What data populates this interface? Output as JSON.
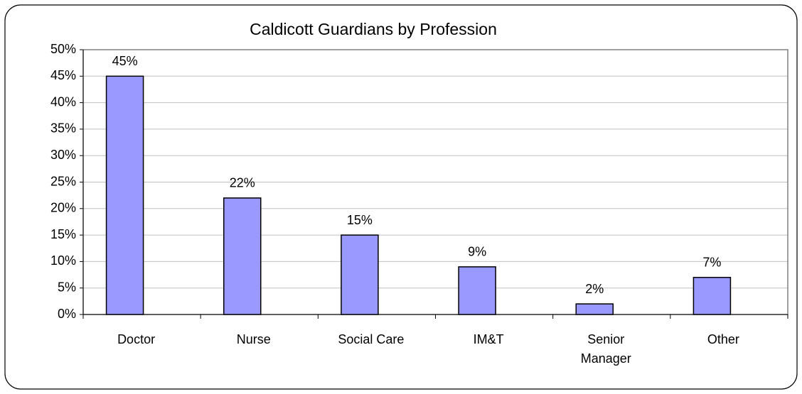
{
  "chart_data": {
    "type": "bar",
    "title": "Caldicott Guardians by Profession",
    "categories": [
      "Doctor",
      "Nurse",
      "Social Care",
      "IM&T",
      "Senior Manager",
      "Other"
    ],
    "values": [
      45,
      22,
      15,
      9,
      2,
      7
    ],
    "value_labels": [
      "45%",
      "22%",
      "15%",
      "9%",
      "2%",
      "7%"
    ],
    "color": "#9999ff",
    "ylim": [
      0,
      50
    ],
    "yticks": [
      {
        "value": 0,
        "label": "0%"
      },
      {
        "value": 5,
        "label": "5%"
      },
      {
        "value": 10,
        "label": "10%"
      },
      {
        "value": 15,
        "label": "15%"
      },
      {
        "value": 20,
        "label": "20%"
      },
      {
        "value": 25,
        "label": "25%"
      },
      {
        "value": 30,
        "label": "30%"
      },
      {
        "value": 35,
        "label": "35%"
      },
      {
        "value": 40,
        "label": "40%"
      },
      {
        "value": 45,
        "label": "45%"
      },
      {
        "value": 50,
        "label": "50%"
      }
    ],
    "grid": true
  }
}
